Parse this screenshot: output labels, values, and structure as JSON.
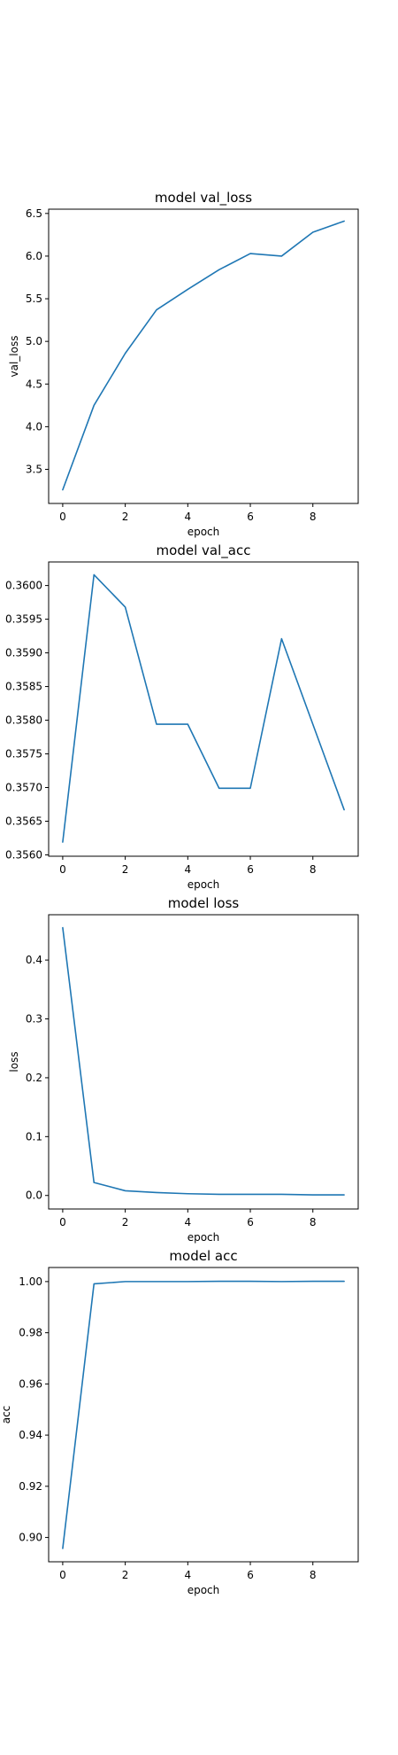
{
  "chart_data": [
    {
      "type": "line",
      "title": "model val_loss",
      "xlabel": "epoch",
      "ylabel": "val_loss",
      "xlim": [
        -0.45,
        9.45
      ],
      "ylim": [
        3.1,
        6.55
      ],
      "xticks": [
        0,
        2,
        4,
        6,
        8
      ],
      "yticks": [
        3.5,
        4.0,
        4.5,
        5.0,
        5.5,
        6.0,
        6.5
      ],
      "grid": false,
      "color": "#1f77b4",
      "x": [
        0,
        1,
        2,
        3,
        4,
        5,
        6,
        7,
        8,
        9
      ],
      "y": [
        3.26,
        4.25,
        4.86,
        5.37,
        5.61,
        5.84,
        6.03,
        6.0,
        6.28,
        6.41
      ]
    },
    {
      "type": "line",
      "title": "model val_acc",
      "xlabel": "epoch",
      "ylabel": "",
      "xlim": [
        -0.45,
        9.45
      ],
      "ylim": [
        0.35598,
        0.36035
      ],
      "xticks": [
        0,
        2,
        4,
        6,
        8
      ],
      "yticks": [
        0.356,
        0.3565,
        0.357,
        0.3575,
        0.358,
        0.3585,
        0.359,
        0.3595,
        0.36
      ],
      "grid": false,
      "color": "#1f77b4",
      "x": [
        0,
        1,
        2,
        3,
        4,
        5,
        6,
        7,
        8,
        9
      ],
      "y": [
        0.35619,
        0.36016,
        0.35968,
        0.35794,
        0.35794,
        0.35699,
        0.35699,
        0.35921,
        0.35794,
        0.35667
      ]
    },
    {
      "type": "line",
      "title": "model loss",
      "xlabel": "epoch",
      "ylabel": "loss",
      "xlim": [
        -0.45,
        9.45
      ],
      "ylim": [
        -0.023,
        0.477
      ],
      "xticks": [
        0,
        2,
        4,
        6,
        8
      ],
      "yticks": [
        0.0,
        0.1,
        0.2,
        0.3,
        0.4
      ],
      "grid": false,
      "color": "#1f77b4",
      "x": [
        0,
        1,
        2,
        3,
        4,
        5,
        6,
        7,
        8,
        9
      ],
      "y": [
        0.455,
        0.022,
        0.008,
        0.005,
        0.003,
        0.002,
        0.002,
        0.002,
        0.001,
        0.001
      ]
    },
    {
      "type": "line",
      "title": "model acc",
      "xlabel": "epoch",
      "ylabel": "acc",
      "xlim": [
        -0.45,
        9.45
      ],
      "ylim": [
        0.8905,
        1.0055
      ],
      "xticks": [
        0,
        2,
        4,
        6,
        8
      ],
      "yticks": [
        0.9,
        0.92,
        0.94,
        0.96,
        0.98,
        1.0
      ],
      "grid": false,
      "color": "#1f77b4",
      "x": [
        0,
        1,
        2,
        3,
        4,
        5,
        6,
        7,
        8,
        9
      ],
      "y": [
        0.8957,
        0.9991,
        1.0,
        1.0,
        1.0,
        1.0001,
        1.0001,
        1.0,
        1.0001,
        1.0001
      ]
    }
  ]
}
